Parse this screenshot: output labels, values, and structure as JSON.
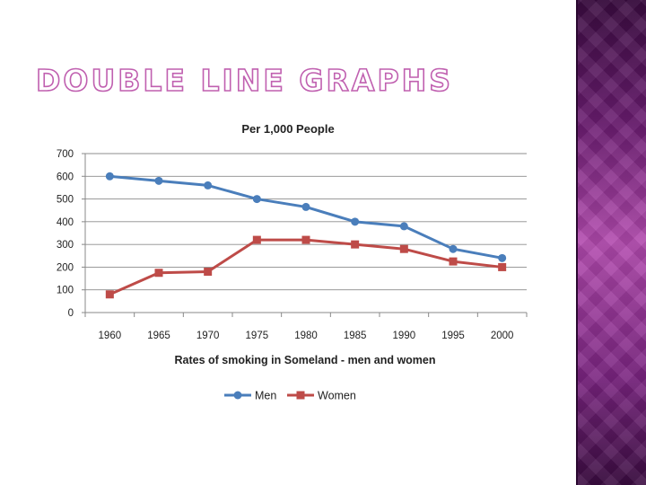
{
  "slide": {
    "title": "DOUBLE LINE GRAPHS",
    "accent_color": "#c060b0",
    "side_band_color": "#8a2c8c"
  },
  "chart_data": {
    "type": "line",
    "title": "Per 1,000 People",
    "xlabel": "Rates of smoking in Someland - men and women",
    "ylabel": "",
    "categories": [
      "1960",
      "1965",
      "1970",
      "1975",
      "1980",
      "1985",
      "1990",
      "1995",
      "2000"
    ],
    "ylim": [
      0,
      700
    ],
    "yticks": [
      "0",
      "100",
      "200",
      "300",
      "400",
      "500",
      "600",
      "700"
    ],
    "grid": true,
    "legend_position": "bottom",
    "series": [
      {
        "name": "Men",
        "color": "#4a7ebb",
        "marker": "circle",
        "values": [
          600,
          580,
          560,
          500,
          465,
          400,
          380,
          280,
          240
        ]
      },
      {
        "name": "Women",
        "color": "#be4b48",
        "marker": "square",
        "values": [
          80,
          175,
          180,
          320,
          320,
          300,
          280,
          225,
          200
        ]
      }
    ]
  }
}
